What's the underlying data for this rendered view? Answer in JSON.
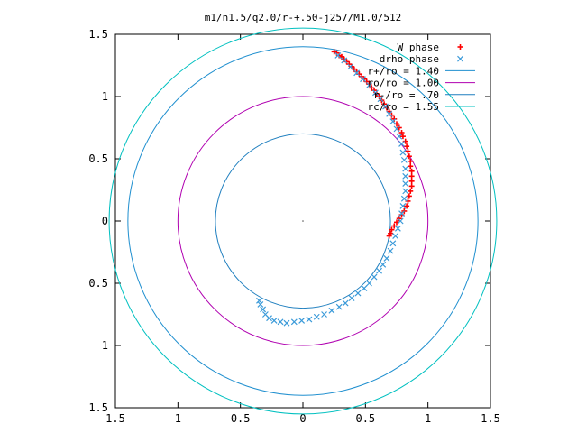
{
  "chart_data": {
    "type": "scatter",
    "title": "m1/n1.5/q2.0/r-+.50-j257/M1.0/512",
    "xlim": [
      -1.5,
      1.5
    ],
    "ylim": [
      -1.5,
      1.5
    ],
    "x_ticks": [
      -1.5,
      -1,
      -0.5,
      0,
      0.5,
      1,
      1.5
    ],
    "y_ticks": [
      -1.5,
      -1,
      -0.5,
      0,
      0.5,
      1,
      1.5
    ],
    "x_tick_labels": [
      "1.5",
      "1",
      "0.5",
      "0",
      "0.5",
      "1",
      "1.5"
    ],
    "y_tick_labels": [
      "1.5",
      "1",
      "0.5",
      "0",
      "0.5",
      "1",
      "1.5"
    ],
    "legend_position": "top-right",
    "series": [
      {
        "name": "W phase",
        "marker": "+",
        "color": "#ff0000",
        "points": [
          [
            0.25,
            1.36
          ],
          [
            0.27,
            1.35
          ],
          [
            0.29,
            1.33
          ],
          [
            0.31,
            1.32
          ],
          [
            0.33,
            1.3
          ],
          [
            0.35,
            1.28
          ],
          [
            0.37,
            1.26
          ],
          [
            0.39,
            1.24
          ],
          [
            0.41,
            1.22
          ],
          [
            0.43,
            1.2
          ],
          [
            0.45,
            1.18
          ],
          [
            0.47,
            1.16
          ],
          [
            0.49,
            1.14
          ],
          [
            0.51,
            1.12
          ],
          [
            0.53,
            1.1
          ],
          [
            0.55,
            1.07
          ],
          [
            0.57,
            1.05
          ],
          [
            0.59,
            1.02
          ],
          [
            0.61,
            1.0
          ],
          [
            0.63,
            0.97
          ],
          [
            0.65,
            0.94
          ],
          [
            0.67,
            0.91
          ],
          [
            0.69,
            0.88
          ],
          [
            0.71,
            0.85
          ],
          [
            0.73,
            0.82
          ],
          [
            0.75,
            0.78
          ],
          [
            0.77,
            0.75
          ],
          [
            0.79,
            0.71
          ],
          [
            0.8,
            0.68
          ],
          [
            0.82,
            0.64
          ],
          [
            0.83,
            0.6
          ],
          [
            0.84,
            0.56
          ],
          [
            0.85,
            0.52
          ],
          [
            0.86,
            0.48
          ],
          [
            0.86,
            0.44
          ],
          [
            0.87,
            0.4
          ],
          [
            0.87,
            0.36
          ],
          [
            0.87,
            0.32
          ],
          [
            0.87,
            0.28
          ],
          [
            0.86,
            0.24
          ],
          [
            0.85,
            0.2
          ],
          [
            0.84,
            0.16
          ],
          [
            0.83,
            0.12
          ],
          [
            0.81,
            0.08
          ],
          [
            0.79,
            0.05
          ],
          [
            0.77,
            0.02
          ],
          [
            0.75,
            -0.01
          ],
          [
            0.73,
            -0.04
          ],
          [
            0.71,
            -0.07
          ],
          [
            0.7,
            -0.1
          ],
          [
            0.69,
            -0.12
          ]
        ]
      },
      {
        "name": "drho phase",
        "marker": "x",
        "color": "#3a9ad9",
        "points": [
          [
            0.28,
            1.33
          ],
          [
            0.33,
            1.29
          ],
          [
            0.38,
            1.24
          ],
          [
            0.43,
            1.19
          ],
          [
            0.48,
            1.14
          ],
          [
            0.53,
            1.09
          ],
          [
            0.58,
            1.03
          ],
          [
            0.62,
            0.98
          ],
          [
            0.66,
            0.92
          ],
          [
            0.69,
            0.86
          ],
          [
            0.72,
            0.8
          ],
          [
            0.75,
            0.74
          ],
          [
            0.77,
            0.68
          ],
          [
            0.79,
            0.62
          ],
          [
            0.8,
            0.55
          ],
          [
            0.81,
            0.49
          ],
          [
            0.82,
            0.42
          ],
          [
            0.82,
            0.36
          ],
          [
            0.82,
            0.3
          ],
          [
            0.82,
            0.24
          ],
          [
            0.81,
            0.18
          ],
          [
            0.8,
            0.12
          ],
          [
            0.79,
            0.06
          ],
          [
            0.78,
            0.0
          ],
          [
            0.76,
            -0.06
          ],
          [
            0.74,
            -0.12
          ],
          [
            0.72,
            -0.18
          ],
          [
            0.7,
            -0.24
          ],
          [
            0.67,
            -0.3
          ],
          [
            0.64,
            -0.35
          ],
          [
            0.61,
            -0.4
          ],
          [
            0.57,
            -0.45
          ],
          [
            0.53,
            -0.5
          ],
          [
            0.49,
            -0.54
          ],
          [
            0.44,
            -0.58
          ],
          [
            0.39,
            -0.62
          ],
          [
            0.34,
            -0.66
          ],
          [
            0.29,
            -0.69
          ],
          [
            0.23,
            -0.72
          ],
          [
            0.17,
            -0.75
          ],
          [
            0.11,
            -0.77
          ],
          [
            0.05,
            -0.79
          ],
          [
            -0.01,
            -0.8
          ],
          [
            -0.07,
            -0.81
          ],
          [
            -0.13,
            -0.82
          ],
          [
            -0.18,
            -0.81
          ],
          [
            -0.23,
            -0.8
          ],
          [
            -0.27,
            -0.78
          ],
          [
            -0.3,
            -0.75
          ],
          [
            -0.32,
            -0.71
          ],
          [
            -0.34,
            -0.67
          ],
          [
            -0.35,
            -0.64
          ]
        ]
      },
      {
        "name": "r+/ro = 1.40",
        "type": "circle",
        "radius": 1.4,
        "color": "#1f8fcf"
      },
      {
        "name": "ro/ro = 1.00",
        "type": "circle",
        "radius": 1.0,
        "color": "#b000b0"
      },
      {
        "name": "r-/ro = .70",
        "type": "circle",
        "radius": 0.7,
        "color": "#1f7fbf"
      },
      {
        "name": "rc/ro = 1.55",
        "type": "circle",
        "radius": 1.55,
        "color": "#00c0c0"
      }
    ]
  }
}
